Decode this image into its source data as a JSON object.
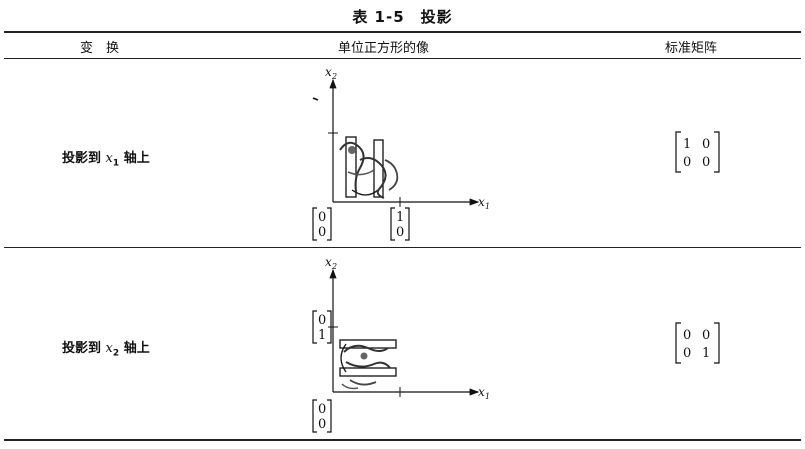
{
  "table": {
    "title": "表 1-5　投影",
    "headers": {
      "transform": "变　换",
      "image": "单位正方形的像",
      "matrix": "标准矩阵"
    },
    "rows": [
      {
        "label_prefix": "投影到",
        "axis_var": "x",
        "axis_sub": "1",
        "label_suffix": "轴上",
        "matrix": [
          [
            "1",
            "0"
          ],
          [
            "0",
            "0"
          ]
        ],
        "vec_origin": [
          "0",
          "0"
        ],
        "vec_tick": [
          "1",
          "0"
        ]
      },
      {
        "label_prefix": "投影到",
        "axis_var": "x",
        "axis_sub": "2",
        "label_suffix": "轴上",
        "matrix": [
          [
            "0",
            "0"
          ],
          [
            "0",
            "1"
          ]
        ],
        "vec_origin": [
          "0",
          "0"
        ],
        "vec_tick": [
          "0",
          "1"
        ]
      }
    ],
    "axis_labels": {
      "x1_var": "x",
      "x1_sub": "1",
      "x2_var": "x",
      "x2_sub": "2"
    }
  }
}
